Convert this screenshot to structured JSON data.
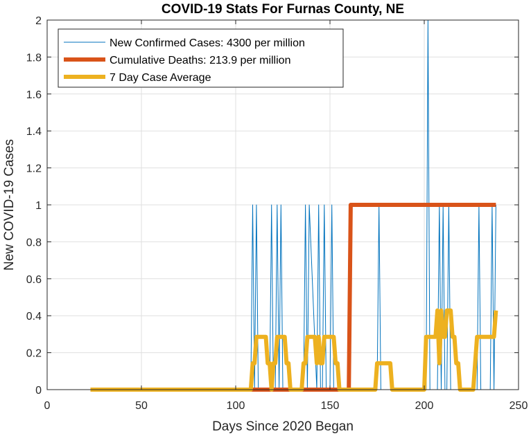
{
  "chart_data": {
    "type": "line",
    "title": "COVID-19 Stats For Furnas County, NE",
    "xlabel": "Days Since 2020 Began",
    "ylabel": "New COVID-19 Cases",
    "xlim": [
      0,
      250
    ],
    "ylim": [
      0,
      2
    ],
    "xticks": [
      0,
      50,
      100,
      150,
      200,
      250
    ],
    "yticks": [
      0,
      0.2,
      0.4,
      0.6,
      0.8,
      1,
      1.2,
      1.4,
      1.6,
      1.8,
      2
    ],
    "xtick_labels": [
      "0",
      "50",
      "100",
      "150",
      "200",
      "250"
    ],
    "ytick_labels": [
      "0",
      "0.2",
      "0.4",
      "0.6",
      "0.8",
      "1",
      "1.2",
      "1.4",
      "1.6",
      "1.8",
      "2"
    ],
    "grid": true,
    "legend_position": "top-left",
    "series": [
      {
        "name": "New Confirmed Cases: 4300 per million",
        "color": "#0072BD",
        "style": "thin",
        "x": [
          23,
          108,
          109,
          110,
          111,
          112,
          118,
          119,
          120,
          121,
          122,
          123,
          124,
          125,
          136,
          137,
          138,
          139,
          143,
          144,
          145,
          146,
          147,
          148,
          149,
          150,
          151,
          152,
          175,
          176,
          177,
          201,
          202,
          203,
          207,
          208,
          209,
          210,
          211,
          212,
          213,
          214,
          228,
          229,
          230,
          235,
          236,
          237,
          238
        ],
        "y": [
          0,
          0,
          1,
          0,
          1,
          0,
          0,
          1,
          0,
          0,
          1,
          0,
          1,
          0,
          0,
          1,
          0,
          1,
          0,
          1,
          0,
          0,
          1,
          0,
          0,
          0,
          1,
          0,
          0,
          1,
          0,
          0,
          2,
          0,
          0,
          1,
          0,
          1,
          0,
          0,
          1,
          0,
          0,
          1,
          0,
          0,
          1,
          0,
          1
        ]
      },
      {
        "name": "Cumulative Deaths: 213.9 per million",
        "color": "#D95319",
        "style": "thick",
        "x": [
          23,
          160,
          161,
          238
        ],
        "y": [
          0,
          0,
          1,
          1
        ]
      },
      {
        "name": "7 Day Case Average",
        "color": "#EDB120",
        "style": "thick",
        "x": [
          23,
          108,
          109,
          110,
          111,
          112,
          113,
          116,
          117,
          118,
          119,
          120,
          121,
          122,
          123,
          124,
          125,
          126,
          127,
          128,
          129,
          135,
          136,
          137,
          138,
          139,
          140,
          142,
          143,
          144,
          145,
          146,
          147,
          148,
          149,
          150,
          151,
          152,
          153,
          154,
          155,
          174,
          175,
          176,
          177,
          182,
          183,
          184,
          200,
          201,
          202,
          203,
          204,
          205,
          206,
          207,
          208,
          209,
          210,
          211,
          212,
          213,
          214,
          215,
          216,
          217,
          218,
          219,
          220,
          221,
          222,
          226,
          227,
          228,
          229,
          230,
          236,
          237,
          238
        ],
        "y": [
          0,
          0,
          0.1428,
          0.1428,
          0.2857,
          0.2857,
          0.2857,
          0.2857,
          0.1428,
          0.1428,
          0,
          0.1428,
          0.1428,
          0.2857,
          0.2857,
          0.2857,
          0.2857,
          0.2857,
          0.1428,
          0.1428,
          0,
          0,
          0.1428,
          0.1428,
          0.2857,
          0.2857,
          0.2857,
          0.2857,
          0.1428,
          0.2857,
          0.1428,
          0.1428,
          0.2857,
          0.2857,
          0.2857,
          0.2857,
          0.2857,
          0.2857,
          0.1428,
          0.1428,
          0,
          0,
          0.1428,
          0.1428,
          0.1428,
          0.1428,
          0,
          0,
          0,
          0.2857,
          0.2857,
          0.2857,
          0.2857,
          0.2857,
          0.2857,
          0.4285,
          0.1428,
          0.4285,
          0.2857,
          0.2857,
          0.4285,
          0.4285,
          0.4285,
          0.2857,
          0.2857,
          0.1428,
          0.1428,
          0,
          0,
          0,
          0,
          0,
          0.1428,
          0.2857,
          0.2857,
          0.2857,
          0.2857,
          0.2857,
          0.4285
        ]
      }
    ]
  }
}
